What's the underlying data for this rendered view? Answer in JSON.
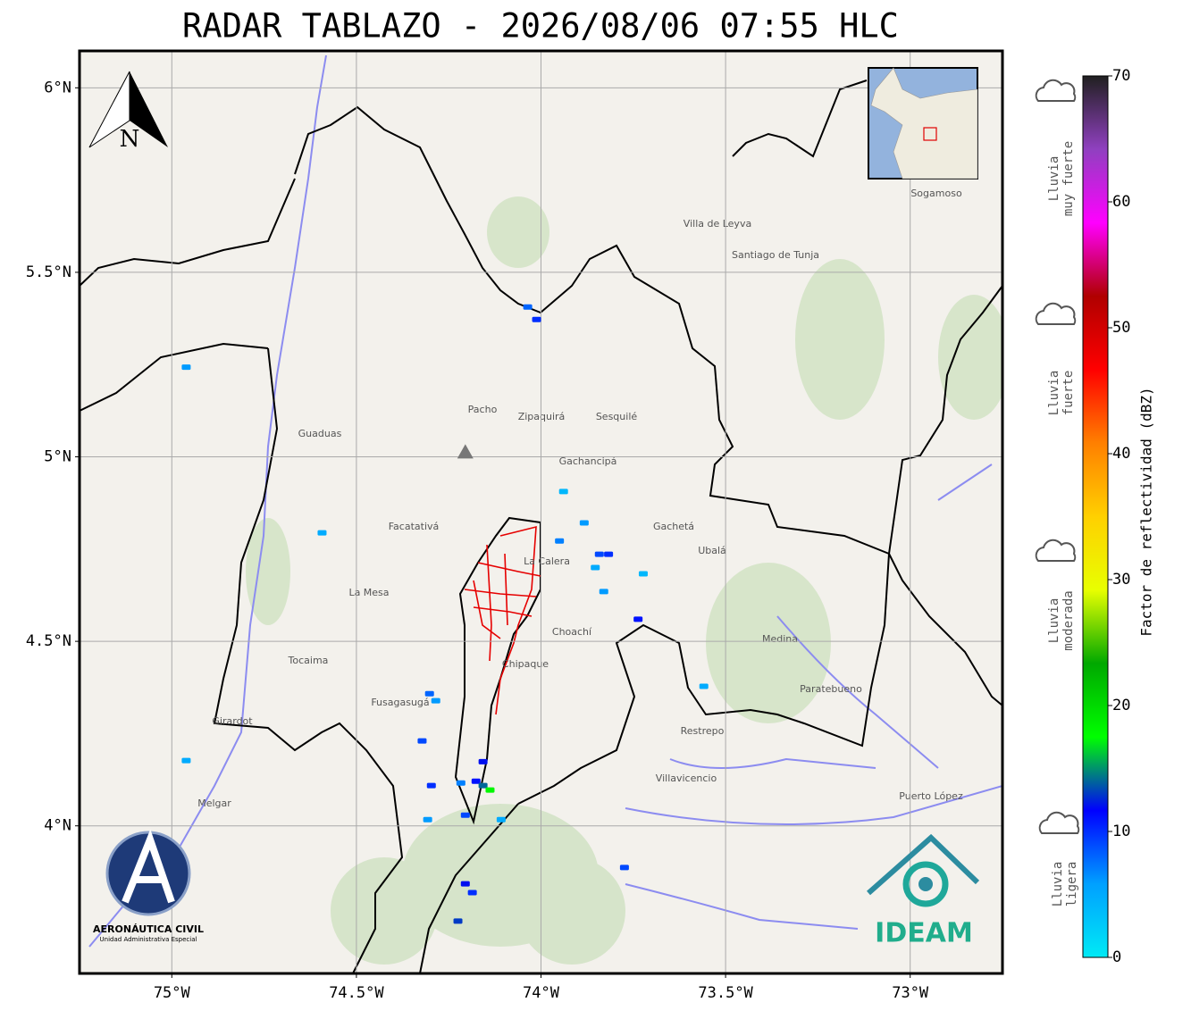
{
  "title": "RADAR TABLAZO - 2026/08/06 07:55 HLC",
  "map": {
    "type": "radar-map",
    "xlim": [
      -75.25,
      -72.75
    ],
    "ylim": [
      3.6,
      6.1
    ],
    "xticks": [
      {
        "value": -75,
        "label": "75°W"
      },
      {
        "value": -74.5,
        "label": "74.5°W"
      },
      {
        "value": -74,
        "label": "74°W"
      },
      {
        "value": -73.5,
        "label": "73.5°W"
      },
      {
        "value": -73,
        "label": "73°W"
      }
    ],
    "yticks": [
      {
        "value": 4,
        "label": "4°N"
      },
      {
        "value": 4.5,
        "label": "4.5°N"
      },
      {
        "value": 5,
        "label": "5°N"
      },
      {
        "value": 5.5,
        "label": "5.5°N"
      },
      {
        "value": 6,
        "label": "6°N"
      }
    ],
    "grid": true,
    "radar_site": {
      "lon": -74.205,
      "lat": 5.01
    },
    "echoes": {
      "lon": [
        -74.036,
        -74.012,
        -74.961,
        -74.593,
        -73.95,
        -73.883,
        -73.842,
        -73.817,
        -73.853,
        -73.723,
        -73.83,
        -73.737,
        -73.559,
        -74.302,
        -74.285,
        -74.322,
        -74.961,
        -74.157,
        -74.176,
        -74.157,
        -74.138,
        -74.217,
        -74.297,
        -74.205,
        -74.307,
        -74.108,
        -74.205,
        -74.186,
        -74.225,
        -73.774,
        -73.939
      ],
      "lat": [
        5.406,
        5.372,
        5.243,
        4.794,
        4.772,
        4.821,
        4.736,
        4.736,
        4.7,
        4.683,
        4.635,
        4.56,
        4.378,
        4.358,
        4.339,
        4.23,
        4.177,
        4.174,
        4.121,
        4.109,
        4.097,
        4.116,
        4.109,
        4.029,
        4.017,
        4.017,
        3.843,
        3.819,
        3.742,
        3.887,
        4.906
      ],
      "dbz": [
        8,
        10,
        6,
        5,
        7,
        6,
        9,
        10,
        5,
        4,
        6,
        11,
        5,
        8,
        6,
        9,
        5,
        12,
        11,
        14,
        18,
        7,
        10,
        9,
        6,
        5,
        12,
        10,
        13,
        9,
        4
      ]
    }
  },
  "colorbar": {
    "label": "Factor de reflectividad (dBZ)",
    "lim": [
      0,
      70
    ],
    "ticks": [
      0,
      10,
      20,
      30,
      40,
      50,
      60,
      70
    ],
    "colors": [
      "#00eaf5",
      "#00a0ff",
      "#0000ff",
      "#00ff00",
      "#00a800",
      "#e8ff00",
      "#ffd000",
      "#ff8000",
      "#ff0000",
      "#b00000",
      "#ff00ff",
      "#9040c0",
      "#202020"
    ]
  },
  "rain_classes": [
    [
      "Lluvia",
      "muy fuerte"
    ],
    [
      "Lluvia",
      "fuerte"
    ],
    [
      "Lluvia",
      "moderada"
    ],
    [
      "Lluvia",
      "ligera"
    ]
  ],
  "north_arrow": "N",
  "logos": {
    "aerocivil": "AERONÁUTICA CIVIL",
    "aerocivil_sub": "Unidad Administrativa Especial",
    "ideam": "IDEAM"
  },
  "places": [
    "Villavicencio",
    "Zipaquirá",
    "Villa de Leyva",
    "Sogamoso",
    "Fusagasugá",
    "La Mesa",
    "Chipaque",
    "Choachí",
    "Gachetá",
    "Medina",
    "Restrepo",
    "La Calera",
    "Facatativá",
    "Guaduas",
    "Pacho",
    "Gachancipá",
    "Ubalá",
    "Puerto López",
    "Paratebueno",
    "Santiago de Tunja",
    "Girardot",
    "Melgar",
    "Tocaima",
    "Sesquilé"
  ]
}
